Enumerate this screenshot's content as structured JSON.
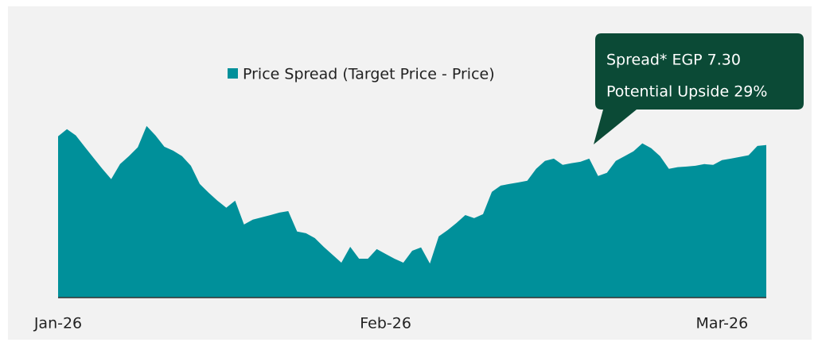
{
  "chart_data": {
    "type": "area",
    "categories": [
      "Jan-26",
      null,
      null,
      null,
      null,
      null,
      null,
      null,
      null,
      null,
      null,
      null,
      null,
      null,
      null,
      null,
      null,
      null,
      null,
      null,
      null,
      null,
      null,
      null,
      null,
      null,
      null,
      null,
      null,
      null,
      null,
      null,
      null,
      null,
      null,
      null,
      null,
      "Feb-26",
      null,
      null,
      null,
      null,
      null,
      null,
      null,
      null,
      null,
      null,
      null,
      null,
      null,
      null,
      null,
      null,
      null,
      null,
      null,
      null,
      null,
      null,
      null,
      null,
      null,
      null,
      null,
      null,
      null,
      null,
      null,
      null,
      null,
      null,
      null,
      null,
      null,
      "Mar-26",
      null,
      null,
      null,
      null,
      null
    ],
    "series": [
      {
        "name": "Price Spread (Target Price - Price)",
        "color": "#00909a",
        "values": [
          7.72,
          8.06,
          7.76,
          7.22,
          6.69,
          6.16,
          5.67,
          6.39,
          6.77,
          7.19,
          8.21,
          7.76,
          7.22,
          7.03,
          6.77,
          6.31,
          5.44,
          5.02,
          4.64,
          4.3,
          4.64,
          3.5,
          3.73,
          3.84,
          3.95,
          4.07,
          4.14,
          3.16,
          3.08,
          2.85,
          2.43,
          2.05,
          1.67,
          2.43,
          1.86,
          1.86,
          2.32,
          2.09,
          1.86,
          1.67,
          2.24,
          2.4,
          1.63,
          2.93,
          3.23,
          3.57,
          3.95,
          3.8,
          3.99,
          5.06,
          5.36,
          5.44,
          5.51,
          5.59,
          6.16,
          6.54,
          6.65,
          6.35,
          6.43,
          6.5,
          6.65,
          5.82,
          5.97,
          6.54,
          6.77,
          7.0,
          7.38,
          7.15,
          6.77,
          6.16,
          6.24,
          6.27,
          6.31,
          6.39,
          6.35,
          6.58,
          6.65,
          6.73,
          6.81,
          7.26,
          7.3
        ]
      }
    ],
    "ylim": [
      0,
      9
    ],
    "annotations": [
      "Spread* EGP 7.30",
      "Potential Upside 29%"
    ]
  }
}
